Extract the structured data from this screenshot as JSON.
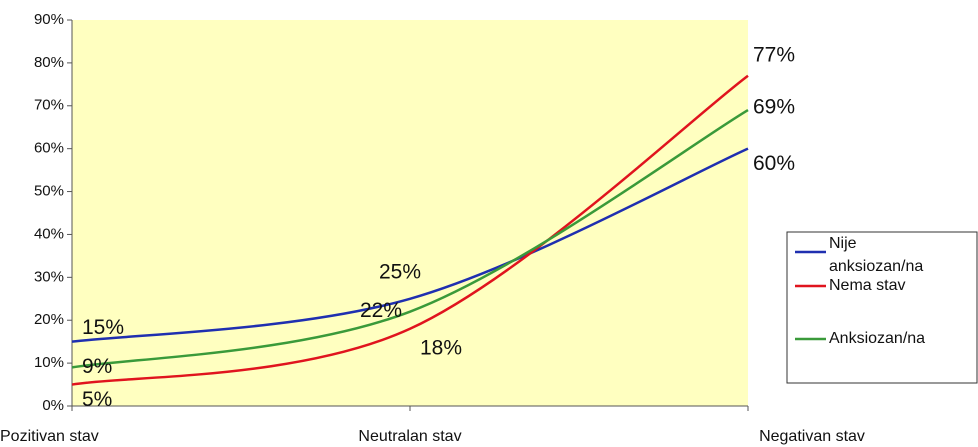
{
  "chart_data": {
    "type": "line",
    "categories": [
      "Pozitivan stav",
      "Neutralan stav",
      "Negativan stav"
    ],
    "series": [
      {
        "name": "Nije anksiozan/na",
        "color": "#1f2fb0",
        "values": [
          15,
          25,
          60
        ],
        "value_labels": [
          "15%",
          "25%",
          "60%"
        ]
      },
      {
        "name": "Nema stav",
        "color": "#e0141e",
        "values": [
          5,
          18,
          77
        ],
        "value_labels": [
          "5%",
          "18%",
          "77%"
        ]
      },
      {
        "name": "Anksiozan/na",
        "color": "#3a9a3a",
        "values": [
          9,
          22,
          69
        ],
        "value_labels": [
          "9%",
          "22%",
          "69%"
        ]
      }
    ],
    "ylim": [
      0,
      90
    ],
    "yticks": [
      {
        "value": 0,
        "label": "0%"
      },
      {
        "value": 10,
        "label": "10%"
      },
      {
        "value": 20,
        "label": "20%"
      },
      {
        "value": 30,
        "label": "30%"
      },
      {
        "value": 40,
        "label": "40%"
      },
      {
        "value": 50,
        "label": "50%"
      },
      {
        "value": 60,
        "label": "60%"
      },
      {
        "value": 70,
        "label": "70%"
      },
      {
        "value": 80,
        "label": "80%"
      },
      {
        "value": 90,
        "label": "90%"
      }
    ],
    "smooth": true,
    "plot_background": "#ffffc0",
    "legend": "right"
  }
}
